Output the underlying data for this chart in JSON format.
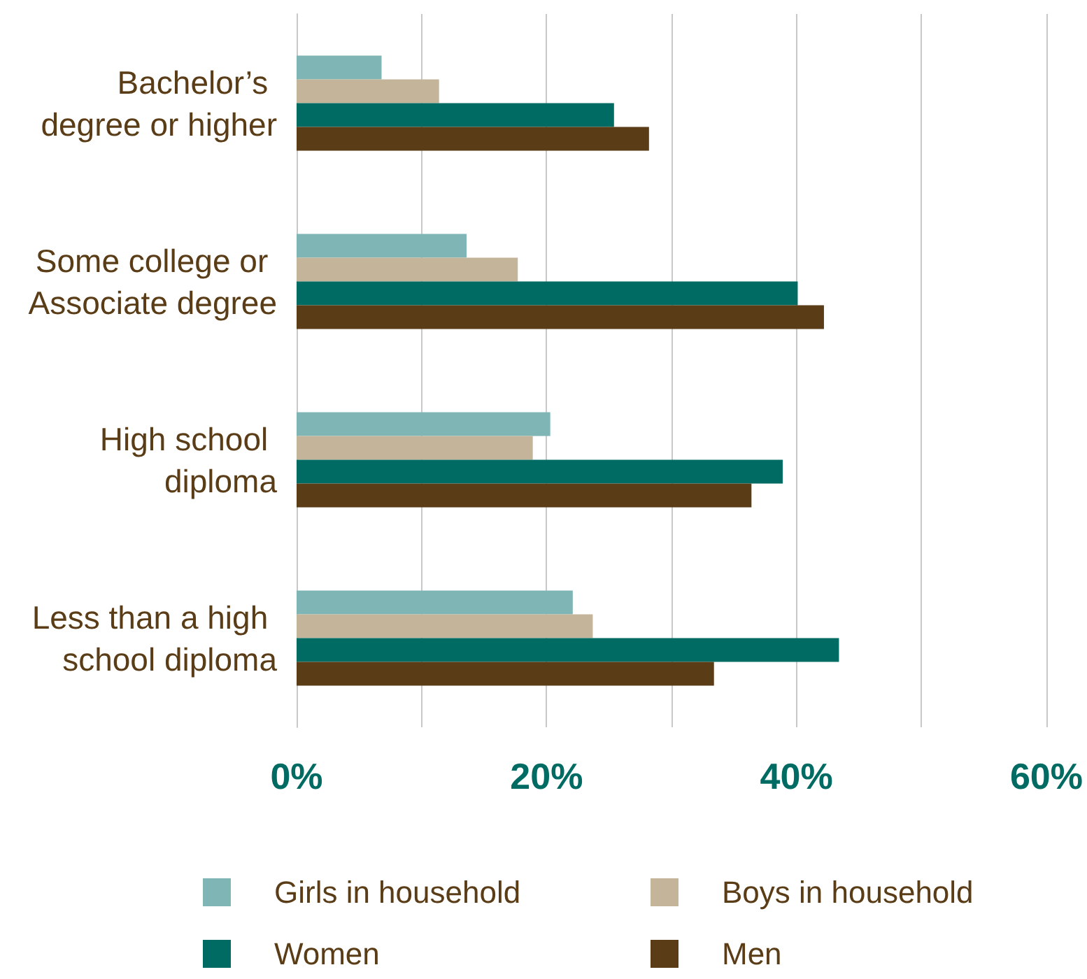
{
  "chart_data": {
    "type": "bar",
    "orientation": "horizontal",
    "categories": [
      "Bachelor’s degree or higher",
      "Some college or Associate degree",
      "High school diploma",
      "Less than a high school diploma"
    ],
    "series": [
      {
        "name": "Girls in household",
        "color": "#7fb5b5",
        "values": [
          6.8,
          13.6,
          20.3,
          22.1
        ]
      },
      {
        "name": "Boys in household",
        "color": "#c4b59a",
        "values": [
          11.4,
          17.7,
          18.9,
          23.7
        ]
      },
      {
        "name": "Women",
        "color": "#006b63",
        "values": [
          25.4,
          40.1,
          38.9,
          43.4
        ]
      },
      {
        "name": "Men",
        "color": "#5a3d17",
        "values": [
          28.2,
          42.2,
          36.4,
          33.4
        ]
      }
    ],
    "xlim": [
      0,
      60
    ],
    "xticks": [
      {
        "value": 0,
        "label": "0%"
      },
      {
        "value": 20,
        "label": "20%"
      },
      {
        "value": 40,
        "label": "40%"
      },
      {
        "value": 60,
        "label": "60%"
      }
    ],
    "grid": "x",
    "legend": "bottom"
  }
}
